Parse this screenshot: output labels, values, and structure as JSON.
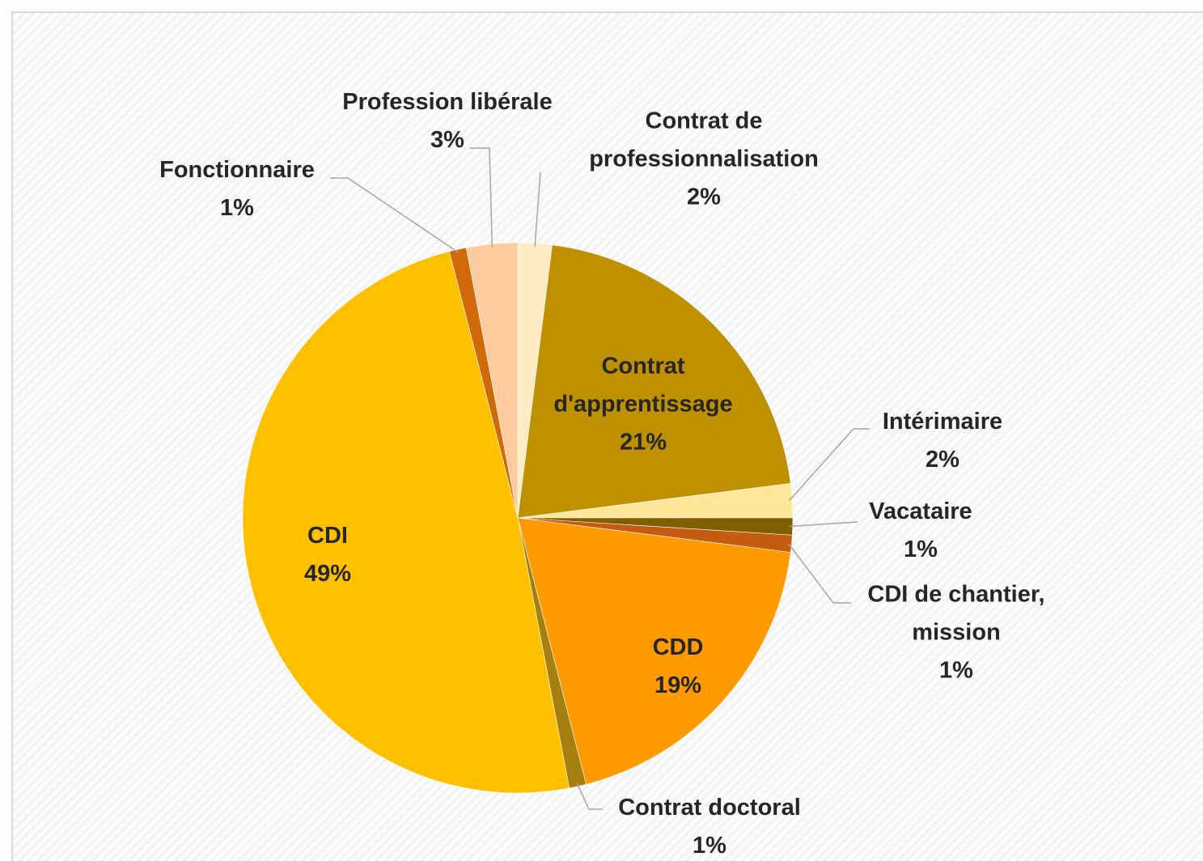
{
  "chart_data": {
    "type": "pie",
    "categories": [
      "Contrat de professionnalisation",
      "Contrat d'apprentissage",
      "Intérimaire",
      "Vacataire",
      "CDI de chantier, mission",
      "CDD",
      "Contrat doctoral",
      "CDI",
      "Fonctionnaire",
      "Profession libérale"
    ],
    "values": [
      2,
      21,
      2,
      1,
      1,
      19,
      1,
      49,
      1,
      3
    ],
    "value_labels": [
      "2%",
      "21%",
      "2%",
      "1%",
      "1%",
      "19%",
      "1%",
      "49%",
      "1%",
      "3%"
    ],
    "colors": [
      "#ffebc4",
      "#bf9000",
      "#ffe699",
      "#7f6000",
      "#c55a11",
      "#ff9a00",
      "#a6800f",
      "#ffc000",
      "#d06a08",
      "#fdcb9e"
    ]
  }
}
